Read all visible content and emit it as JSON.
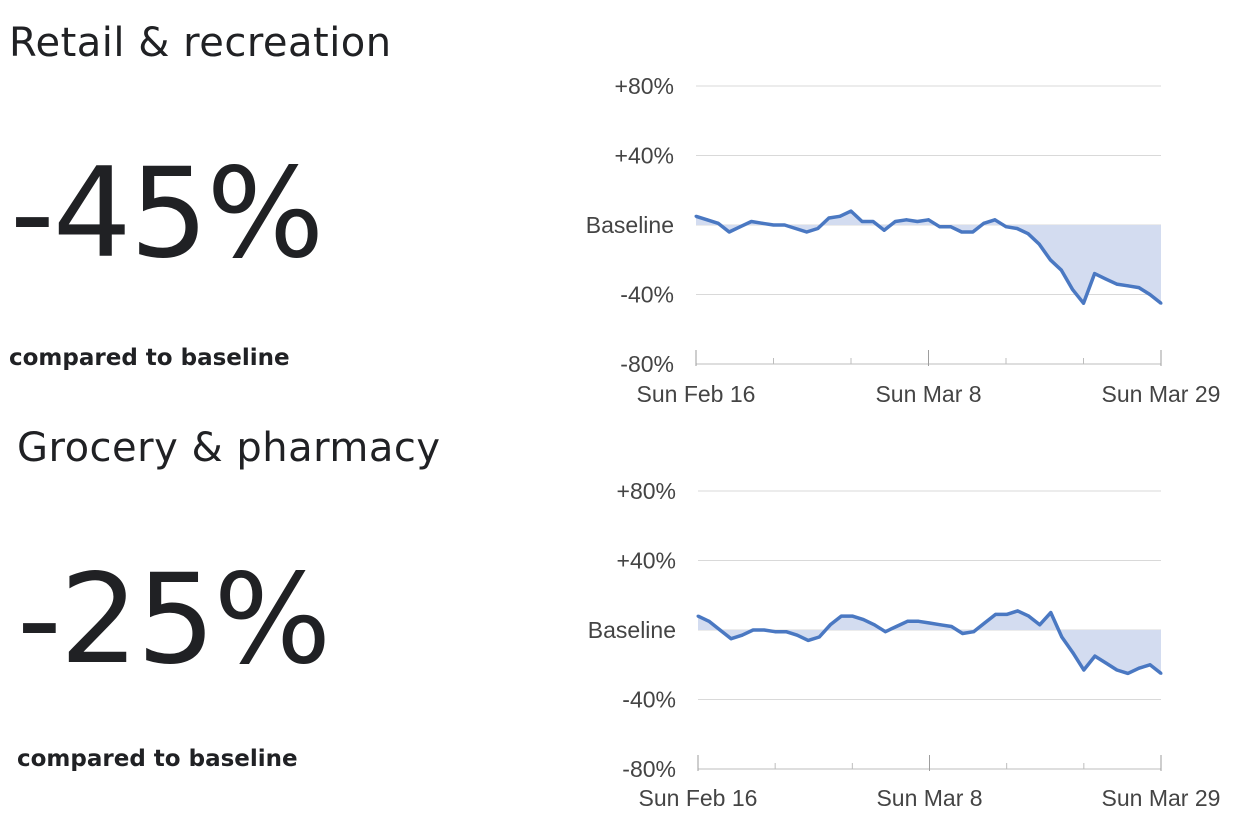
{
  "sections": [
    {
      "title": "Retail & recreation",
      "value": "-45%",
      "caption": "compared to baseline"
    },
    {
      "title": "Grocery & pharmacy",
      "value": "-25%",
      "caption": "compared to baseline"
    }
  ],
  "chart_data": [
    {
      "type": "area",
      "title": "",
      "xlabel": "",
      "ylabel": "",
      "ylim": [
        -80,
        80
      ],
      "y_ticks": [
        {
          "value": 80,
          "label": "+80%"
        },
        {
          "value": 40,
          "label": "+40%"
        },
        {
          "value": 0,
          "label": "Baseline"
        },
        {
          "value": -40,
          "label": "-40%"
        },
        {
          "value": -80,
          "label": "-80%"
        }
      ],
      "x_ticks": [
        {
          "value": 0,
          "label": "Sun Feb 16"
        },
        {
          "value": 21,
          "label": "Sun Mar 8"
        },
        {
          "value": 42,
          "label": "Sun Mar 29"
        }
      ],
      "x_range": [
        0,
        42
      ],
      "grid": true,
      "line_color": "#4a78c2",
      "fill_color": "#d3dcf0",
      "series": [
        {
          "values": [
            5,
            3,
            1,
            -4,
            -1,
            2,
            1,
            0,
            0,
            -2,
            -4,
            -2,
            4,
            5,
            8,
            2,
            2,
            -3,
            2,
            3,
            2,
            3,
            -1,
            -1,
            -4,
            -4,
            1,
            3,
            -1,
            -2,
            -5,
            -11,
            -20,
            -26,
            -37,
            -45,
            -28,
            -31,
            -34,
            -35,
            -36,
            -40,
            -45
          ]
        }
      ]
    },
    {
      "type": "area",
      "title": "",
      "xlabel": "",
      "ylabel": "",
      "ylim": [
        -80,
        80
      ],
      "y_ticks": [
        {
          "value": 80,
          "label": "+80%"
        },
        {
          "value": 40,
          "label": "+40%"
        },
        {
          "value": 0,
          "label": "Baseline"
        },
        {
          "value": -40,
          "label": "-40%"
        },
        {
          "value": -80,
          "label": "-80%"
        }
      ],
      "x_ticks": [
        {
          "value": 0,
          "label": "Sun Feb 16"
        },
        {
          "value": 21,
          "label": "Sun Mar 8"
        },
        {
          "value": 42,
          "label": "Sun Mar 29"
        }
      ],
      "x_range": [
        0,
        42
      ],
      "grid": true,
      "line_color": "#4a78c2",
      "fill_color": "#d3dcf0",
      "series": [
        {
          "values": [
            8,
            5,
            0,
            -5,
            -3,
            0,
            0,
            -1,
            -1,
            -3,
            -6,
            -4,
            3,
            8,
            8,
            6,
            3,
            -1,
            2,
            5,
            5,
            4,
            3,
            2,
            -2,
            -1,
            4,
            9,
            9,
            11,
            8,
            3,
            10,
            -4,
            -13,
            -23,
            -15,
            -19,
            -23,
            -25,
            -22,
            -20,
            -25
          ]
        }
      ]
    }
  ]
}
